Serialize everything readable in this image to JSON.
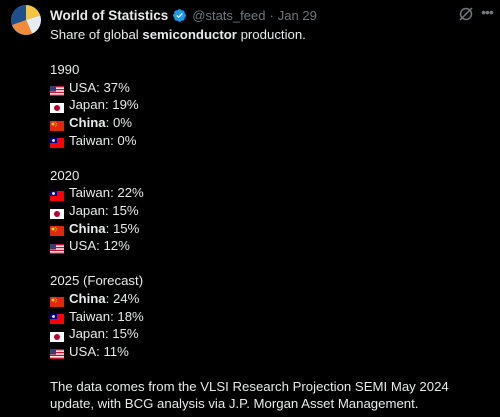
{
  "header": {
    "name": "World of Statistics",
    "handle": "@stats_feed",
    "separator": "·",
    "date": "Jan 29",
    "more_icon": "more-dots-icon",
    "grok_icon": "grok-icon"
  },
  "intro": {
    "prefix": "Share of global ",
    "bold": "semiconductor",
    "suffix": " production."
  },
  "sections": [
    {
      "title": "1990",
      "rows": [
        {
          "flag": "usa",
          "country": "USA",
          "value": ": 37%"
        },
        {
          "flag": "japan",
          "country": "Japan",
          "value": ": 19%"
        },
        {
          "flag": "china",
          "country": "China",
          "value": ": 0%",
          "bold": true
        },
        {
          "flag": "taiwan",
          "country": "Taiwan",
          "value": ": 0%"
        }
      ]
    },
    {
      "title": "2020",
      "rows": [
        {
          "flag": "taiwan",
          "country": "Taiwan",
          "value": ": 22%"
        },
        {
          "flag": "japan",
          "country": "Japan",
          "value": ": 15%"
        },
        {
          "flag": "china",
          "country": "China",
          "value": ": 15%",
          "bold": true
        },
        {
          "flag": "usa",
          "country": "USA",
          "value": ": 12%"
        }
      ]
    },
    {
      "title": "2025 (Forecast)",
      "rows": [
        {
          "flag": "china",
          "country": "China",
          "value": ": 24%",
          "bold": true
        },
        {
          "flag": "taiwan",
          "country": "Taiwan",
          "value": ": 18%"
        },
        {
          "flag": "japan",
          "country": "Japan",
          "value": ": 15%"
        },
        {
          "flag": "usa",
          "country": "USA",
          "value": ": 11%"
        }
      ]
    }
  ],
  "footer": "The data comes from the VLSI Research Projection SEMI May 2024 update, with BCG analysis via J.P. Morgan Asset Management.",
  "colors": {
    "background": "#000000",
    "text": "#e7e9ea",
    "muted": "#71767b",
    "verified": "#1d9bf0"
  }
}
